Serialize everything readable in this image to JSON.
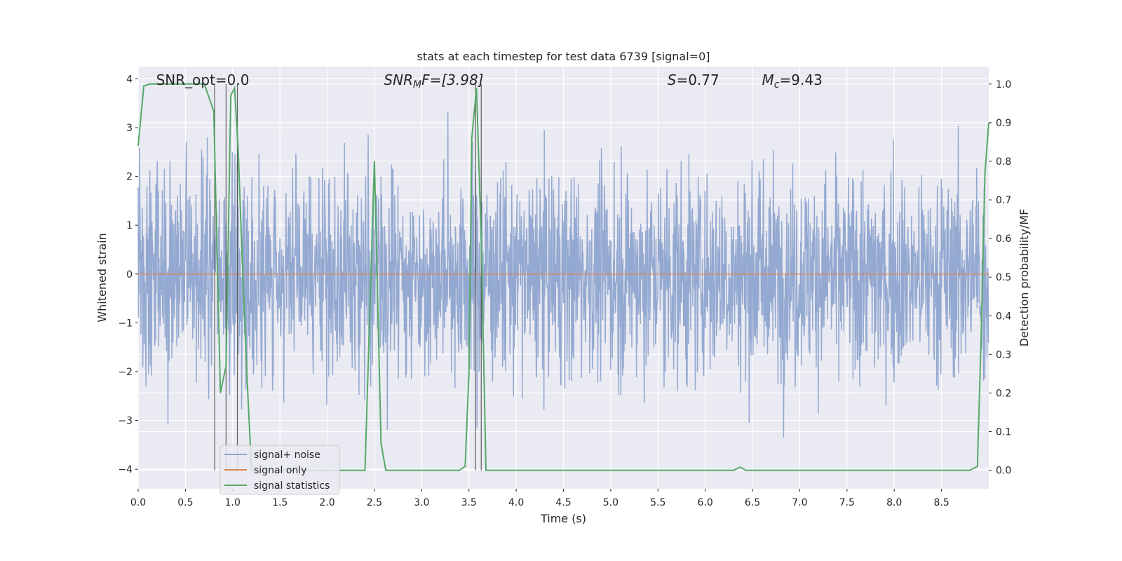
{
  "chart_data": {
    "type": "line",
    "title": "stats at each timestep for test data 6739 [signal=0]",
    "xlabel": "Time (s)",
    "ylabel": "Whitened strain",
    "y2label": "Detection probability/MF",
    "xlim": [
      0.0,
      9.0
    ],
    "ylim": [
      -4.4,
      4.25
    ],
    "y2lim": [
      -0.048,
      1.045
    ],
    "x_ticks": [
      "0.0",
      "0.5",
      "1.0",
      "1.5",
      "2.0",
      "2.5",
      "3.0",
      "3.5",
      "4.0",
      "4.5",
      "5.0",
      "5.5",
      "6.0",
      "6.5",
      "7.0",
      "7.5",
      "8.0",
      "8.5"
    ],
    "y_ticks": [
      "4",
      "3",
      "2",
      "1",
      "0",
      "−1",
      "−2",
      "−3",
      "−4"
    ],
    "y2_ticks": [
      "1.0",
      "0.9",
      "0.8",
      "0.7",
      "0.6",
      "0.5",
      "0.4",
      "0.3",
      "0.2",
      "0.1",
      "0.0"
    ],
    "grid": true,
    "legend_position": "lower-left",
    "annotations": [
      "SNR_opt=0.0",
      "SNR_MF=[3.98]",
      "S=0.77",
      "M_c=9.43"
    ],
    "series": [
      {
        "name": "signal+ noise",
        "color": "#8fa5cf",
        "axis": "left",
        "description_values": "dense whitened noise, amplitude mostly within ±2.5, peaks to ±3.9",
        "noise_envelope": [
          -4.0,
          3.9
        ]
      },
      {
        "name": "signal only",
        "color": "#dd8452",
        "axis": "left",
        "x": [
          0.0,
          9.0
        ],
        "y": [
          0.0,
          0.0
        ]
      },
      {
        "name": "signal statistics",
        "color": "#55a868",
        "axis": "right",
        "x": [
          0.0,
          0.06,
          0.12,
          0.2,
          0.3,
          0.4,
          0.5,
          0.6,
          0.7,
          0.8,
          0.87,
          0.93,
          0.98,
          1.02,
          1.06,
          1.1,
          1.15,
          1.2,
          1.3,
          1.4,
          1.6,
          2.0,
          2.4,
          2.5,
          2.57,
          2.62,
          2.8,
          3.0,
          3.2,
          3.4,
          3.46,
          3.5,
          3.53,
          3.58,
          3.63,
          3.68,
          3.73,
          3.78,
          4.0,
          5.0,
          6.0,
          6.3,
          6.37,
          6.43,
          6.5,
          7.0,
          7.3,
          8.0,
          8.5,
          8.8,
          8.88,
          8.92,
          8.96,
          9.0
        ],
        "y": [
          0.84,
          0.995,
          1.0,
          1.0,
          1.0,
          1.0,
          1.0,
          1.0,
          1.0,
          0.93,
          0.2,
          0.27,
          0.97,
          0.99,
          0.82,
          0.55,
          0.25,
          0.0,
          0.0,
          0.0,
          0.0,
          0.0,
          0.0,
          0.8,
          0.07,
          0.0,
          0.0,
          0.0,
          0.0,
          0.0,
          0.01,
          0.25,
          0.86,
          0.99,
          0.6,
          0.0,
          0.0,
          0.0,
          0.0,
          0.0,
          0.0,
          0.0,
          0.008,
          0.0,
          0.0,
          0.0,
          0.0,
          0.0,
          0.0,
          0.0,
          0.01,
          0.35,
          0.77,
          0.9
        ]
      }
    ],
    "vertical_markers_x": [
      0.81,
      0.93,
      1.05,
      3.57,
      3.63
    ]
  },
  "legend": {
    "items": [
      {
        "label": "signal+ noise",
        "color": "#8fa5cf"
      },
      {
        "label": "signal only",
        "color": "#dd8452"
      },
      {
        "label": "signal statistics",
        "color": "#55a868"
      }
    ]
  },
  "annotations": {
    "snr_opt": "SNR_opt=0.0",
    "snr_mf_sym": "SNR",
    "snr_mf_sub": "M",
    "snr_mf_rest": "F=[3.98]",
    "s_sym": "S",
    "s_rest": "=0.77",
    "mc_sym": "M",
    "mc_sub": "c",
    "mc_rest": "=9.43"
  }
}
